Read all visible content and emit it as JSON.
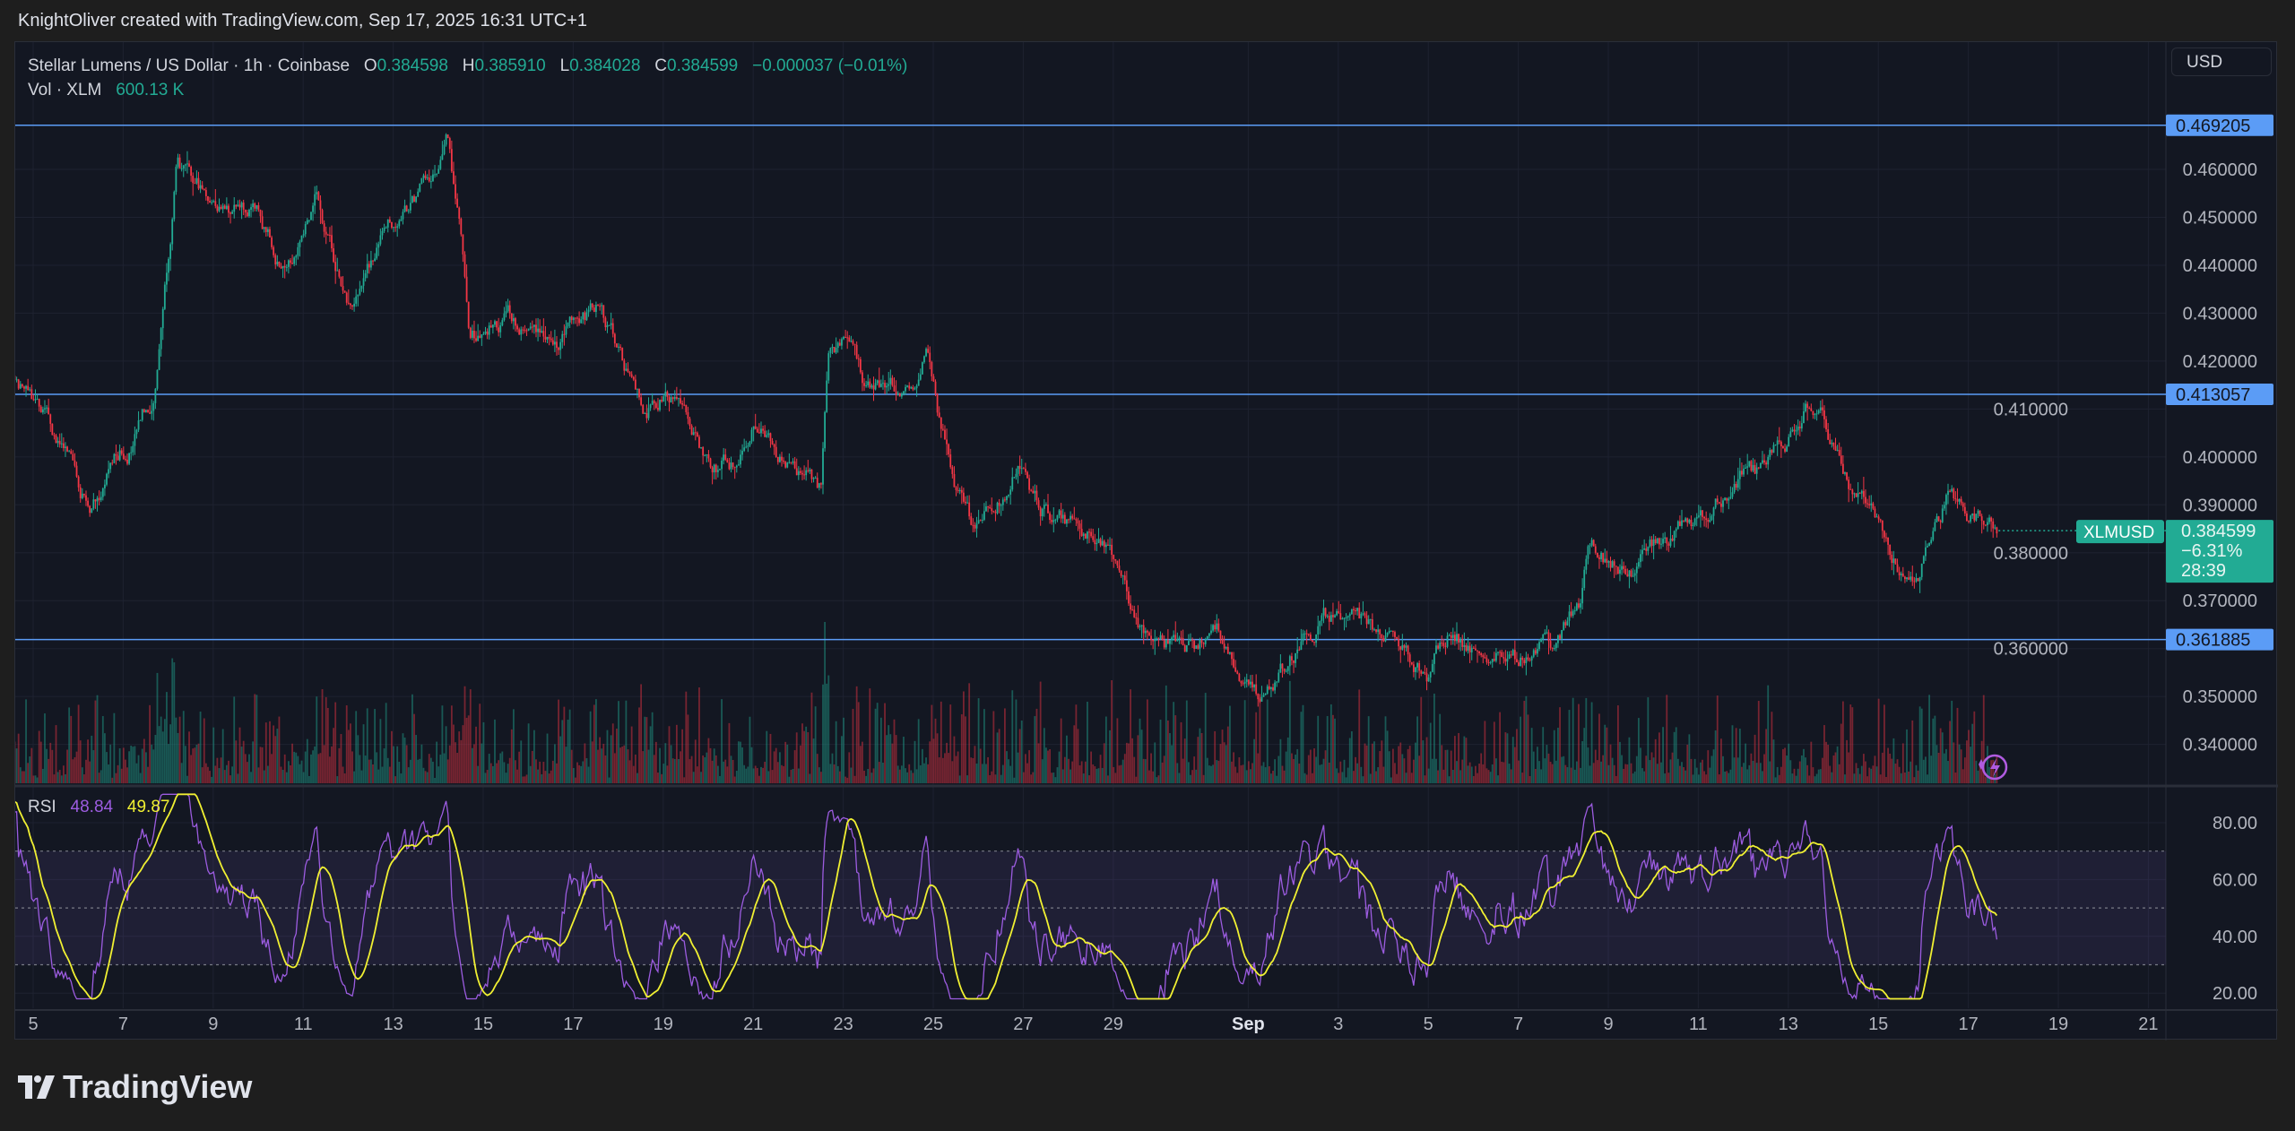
{
  "credit": "KnightOliver created with TradingView.com, Sep 17, 2025 16:31 UTC+1",
  "legend": {
    "symbol_title": "Stellar Lumens / US Dollar · 1h · Coinbase",
    "o_label": "O",
    "o": "0.384598",
    "h_label": "H",
    "h": "0.385910",
    "l_label": "L",
    "l": "0.384028",
    "c_label": "C",
    "c": "0.384599",
    "change": "−0.000037 (−0.01%)",
    "vol_label": "Vol · XLM",
    "vol": "600.13 K"
  },
  "currency_button": "USD",
  "rsi": {
    "label": "RSI",
    "value": "48.84",
    "ma_value": "49.87",
    "ticks": [
      "80.00",
      "60.00",
      "40.00",
      "20.00"
    ],
    "tick_values": [
      80,
      60,
      40,
      20
    ],
    "upper_band": 70,
    "lower_band": 30,
    "middle": 50,
    "color": "#9c5ce0",
    "ma_color": "#f0f032"
  },
  "price_axis": {
    "ticks": [
      "0.460000",
      "0.450000",
      "0.440000",
      "0.430000",
      "0.420000",
      "0.410000",
      "0.400000",
      "0.390000",
      "0.380000",
      "0.370000",
      "0.360000",
      "0.350000",
      "0.340000"
    ],
    "tick_values": [
      0.46,
      0.45,
      0.44,
      0.43,
      0.42,
      0.41,
      0.4,
      0.39,
      0.38,
      0.37,
      0.36,
      0.35,
      0.34
    ]
  },
  "levels": [
    {
      "label": "0.469205",
      "value": 0.469205
    },
    {
      "label": "0.413057",
      "value": 0.413057
    },
    {
      "label": "0.361885",
      "value": 0.361885
    }
  ],
  "current": {
    "symbol": "XLMUSD",
    "price": "0.384599",
    "price_value": 0.384599,
    "change_pct": "−6.31%",
    "countdown": "28:39"
  },
  "time_axis": {
    "labels": [
      "5",
      "7",
      "9",
      "11",
      "13",
      "15",
      "17",
      "19",
      "21",
      "23",
      "25",
      "27",
      "29",
      "Sep",
      "3",
      "5",
      "7",
      "9",
      "11",
      "13",
      "15",
      "17",
      "19",
      "21"
    ],
    "days_since_aug5": [
      0,
      2,
      4,
      6,
      8,
      10,
      12,
      14,
      16,
      18,
      20,
      22,
      24,
      27,
      29,
      31,
      33,
      35,
      37,
      39,
      41,
      43,
      45,
      47
    ]
  },
  "colors": {
    "up": "#22ab94",
    "down": "#f23645",
    "level": "#5b9cf6",
    "grid": "#1e2230"
  },
  "chart_data": {
    "type": "candlestick",
    "title": "Stellar Lumens / US Dollar · 1h · Coinbase",
    "interval": "1h",
    "x_unit": "days since Aug 5 2025",
    "last_day": 43.67,
    "ylim": [
      0.335,
      0.478
    ],
    "close_path_days": [
      -0.7,
      -0.39,
      0.26,
      0.75,
      1.24,
      1.72,
      2.21,
      2.7,
      2.93,
      3.19,
      3.51,
      4.0,
      4.49,
      4.98,
      5.46,
      5.79,
      6.28,
      6.6,
      7.02,
      7.41,
      7.9,
      8.39,
      8.88,
      9.2,
      9.53,
      9.69,
      10.18,
      10.67,
      11.15,
      11.64,
      12.13,
      12.62,
      13.11,
      13.59,
      14.08,
      14.57,
      15.06,
      15.54,
      16.03,
      16.52,
      17.01,
      17.5,
      17.66,
      17.98,
      18.47,
      18.96,
      19.45,
      19.84,
      20.1,
      20.42,
      20.91,
      21.4,
      21.89,
      22.37,
      22.86,
      23.35,
      23.84,
      24.33,
      24.81,
      25.3,
      25.79,
      26.28,
      26.76,
      27.25,
      27.74,
      28.23,
      28.72,
      29.2,
      29.69,
      30.18,
      30.67,
      30.99,
      31.48,
      31.97,
      32.46,
      32.94,
      33.43,
      33.92,
      34.34,
      34.57,
      35.06,
      35.54,
      36.03,
      36.52,
      37.01,
      37.5,
      37.98,
      38.47,
      38.8,
      39.12,
      39.51,
      39.93,
      40.42,
      40.91,
      41.4,
      41.89,
      42.37,
      42.54,
      43.02,
      43.67
    ],
    "close_path_prices": [
      0.412,
      0.415,
      0.4075,
      0.3985,
      0.3895,
      0.3985,
      0.403,
      0.4135,
      0.4375,
      0.4615,
      0.4555,
      0.454,
      0.4525,
      0.4495,
      0.4405,
      0.445,
      0.4555,
      0.445,
      0.4315,
      0.439,
      0.448,
      0.4525,
      0.457,
      0.4645,
      0.4435,
      0.4225,
      0.427,
      0.4285,
      0.4285,
      0.427,
      0.43,
      0.43,
      0.4195,
      0.409,
      0.415,
      0.406,
      0.3955,
      0.3985,
      0.4075,
      0.3985,
      0.3955,
      0.3925,
      0.4225,
      0.424,
      0.4135,
      0.4165,
      0.4135,
      0.421,
      0.4075,
      0.3955,
      0.3835,
      0.3925,
      0.3985,
      0.3895,
      0.3865,
      0.385,
      0.382,
      0.3685,
      0.3595,
      0.361,
      0.3595,
      0.3625,
      0.3565,
      0.349,
      0.355,
      0.3625,
      0.3655,
      0.367,
      0.364,
      0.361,
      0.358,
      0.355,
      0.364,
      0.361,
      0.3595,
      0.358,
      0.358,
      0.361,
      0.3685,
      0.382,
      0.3775,
      0.376,
      0.3805,
      0.385,
      0.388,
      0.391,
      0.3955,
      0.3955,
      0.4015,
      0.406,
      0.4129,
      0.4045,
      0.3955,
      0.388,
      0.379,
      0.379,
      0.385,
      0.391,
      0.388,
      0.3846
    ]
  }
}
